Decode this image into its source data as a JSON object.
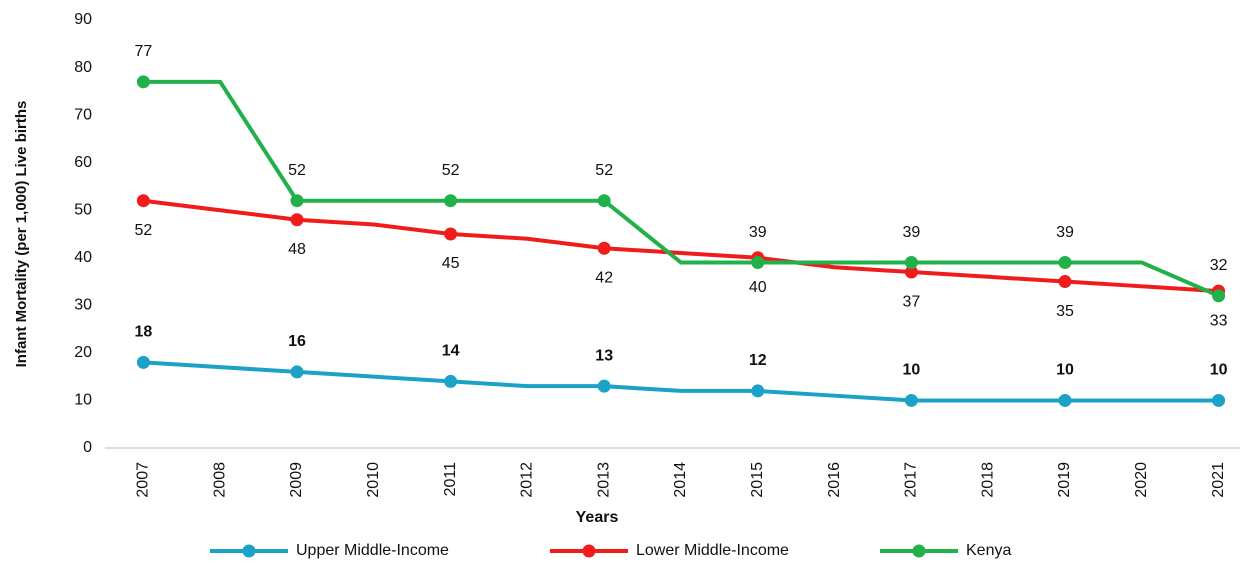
{
  "chart_data": {
    "type": "line",
    "y_label": "Infant Mortality (per 1,000) Live births",
    "x_label": "Years",
    "categories": [
      "2007",
      "2008",
      "2009",
      "2010",
      "2011",
      "2012",
      "2013",
      "2014",
      "2015",
      "2016",
      "2017",
      "2018",
      "2019",
      "2020",
      "2021"
    ],
    "series": [
      {
        "name": "Upper Middle-Income",
        "color": "#1ba2c6",
        "values": [
          18,
          17,
          16,
          15,
          14,
          13,
          13,
          12,
          12,
          11,
          10,
          10,
          10,
          10,
          10
        ],
        "value_labels": [
          "18",
          null,
          "16",
          null,
          "14",
          null,
          "13",
          null,
          "12",
          null,
          "10",
          null,
          "10",
          null,
          "10"
        ]
      },
      {
        "name": "Lower Middle-Income",
        "color": "#f01c1c",
        "values": [
          52,
          50,
          48,
          47,
          45,
          44,
          42,
          41,
          40,
          38,
          37,
          36,
          35,
          34,
          33
        ],
        "value_labels": [
          "52",
          null,
          "48",
          null,
          "45",
          null,
          "42",
          null,
          "40",
          null,
          "37",
          null,
          "35",
          null,
          "33"
        ]
      },
      {
        "name": "Kenya",
        "color": "#22b04b",
        "values": [
          77,
          77,
          52,
          52,
          52,
          52,
          52,
          39,
          39,
          39,
          39,
          39,
          39,
          39,
          32
        ],
        "value_labels": [
          "77",
          null,
          "52",
          null,
          "52",
          null,
          "52",
          null,
          "39",
          null,
          "39",
          null,
          "39",
          null,
          "32"
        ]
      }
    ],
    "ylim": [
      0,
      90
    ],
    "yticks": [
      0,
      10,
      20,
      30,
      40,
      50,
      60,
      70,
      80,
      90
    ],
    "grid": false
  }
}
